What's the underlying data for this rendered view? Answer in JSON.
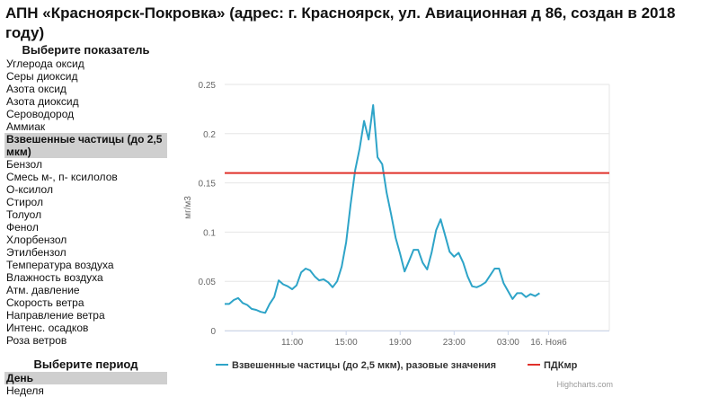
{
  "page": {
    "title": "АПН «Красноярск-Покровка» (адрес: г. Красноярск, ул. Авиационная д 86, создан в 2018 году)"
  },
  "indicators": {
    "heading": "Выберите показатель",
    "selected_index": 6,
    "items": [
      "Углерода оксид",
      "Серы диоксид",
      "Азота оксид",
      "Азота диоксид",
      "Сероводород",
      "Аммиак",
      "Взвешенные частицы (до 2,5 мкм)",
      "Бензол",
      "Смесь м-, п- ксилолов",
      "О-ксилол",
      "Стирол",
      "Толуол",
      "Фенол",
      "Хлорбензол",
      "Этилбензол",
      "Температура воздуха",
      "Влажность воздуха",
      "Атм. давление",
      "Скорость ветра",
      "Направление ветра",
      "Интенс. осадков",
      "Роза ветров"
    ]
  },
  "period": {
    "heading": "Выберите период",
    "selected_index": 0,
    "items": [
      "День",
      "Неделя"
    ]
  },
  "chart_data": {
    "type": "line",
    "title": "",
    "ylabel": "мг/м3",
    "xlabel": "",
    "ylim": [
      0,
      0.25
    ],
    "yticks": [
      0,
      0.05,
      0.1,
      0.15,
      0.2,
      0.25
    ],
    "ytick_labels": [
      "0",
      "0.05",
      "0.1",
      "0.15",
      "0.2",
      "0.25"
    ],
    "xlim": [
      0,
      28.5
    ],
    "xticks": [
      {
        "x": 5,
        "label": "11:00"
      },
      {
        "x": 9,
        "label": "15:00"
      },
      {
        "x": 13,
        "label": "19:00"
      },
      {
        "x": 17,
        "label": "23:00"
      },
      {
        "x": 21,
        "label": "03:00"
      },
      {
        "x": 24,
        "label": "16. Ноя6"
      }
    ],
    "series": [
      {
        "name": "Взвешенные частицы (до 2,5 мкм), разовые значения",
        "color": "#2ea4c8",
        "points": [
          [
            0.0,
            0.027
          ],
          [
            0.33,
            0.027
          ],
          [
            0.67,
            0.031
          ],
          [
            1.0,
            0.033
          ],
          [
            1.33,
            0.028
          ],
          [
            1.67,
            0.026
          ],
          [
            2.0,
            0.022
          ],
          [
            2.33,
            0.021
          ],
          [
            2.67,
            0.019
          ],
          [
            3.0,
            0.018
          ],
          [
            3.33,
            0.027
          ],
          [
            3.67,
            0.034
          ],
          [
            4.0,
            0.051
          ],
          [
            4.33,
            0.047
          ],
          [
            4.67,
            0.045
          ],
          [
            5.0,
            0.042
          ],
          [
            5.33,
            0.046
          ],
          [
            5.67,
            0.059
          ],
          [
            6.0,
            0.063
          ],
          [
            6.33,
            0.061
          ],
          [
            6.67,
            0.055
          ],
          [
            7.0,
            0.051
          ],
          [
            7.33,
            0.052
          ],
          [
            7.67,
            0.049
          ],
          [
            8.0,
            0.044
          ],
          [
            8.33,
            0.05
          ],
          [
            8.67,
            0.065
          ],
          [
            9.0,
            0.09
          ],
          [
            9.33,
            0.128
          ],
          [
            9.67,
            0.163
          ],
          [
            10.0,
            0.185
          ],
          [
            10.33,
            0.213
          ],
          [
            10.67,
            0.194
          ],
          [
            11.0,
            0.229
          ],
          [
            11.33,
            0.176
          ],
          [
            11.67,
            0.169
          ],
          [
            12.0,
            0.14
          ],
          [
            12.33,
            0.118
          ],
          [
            12.67,
            0.094
          ],
          [
            13.0,
            0.078
          ],
          [
            13.33,
            0.06
          ],
          [
            13.67,
            0.071
          ],
          [
            14.0,
            0.082
          ],
          [
            14.33,
            0.082
          ],
          [
            14.67,
            0.069
          ],
          [
            15.0,
            0.062
          ],
          [
            15.33,
            0.079
          ],
          [
            15.67,
            0.102
          ],
          [
            16.0,
            0.113
          ],
          [
            16.33,
            0.097
          ],
          [
            16.67,
            0.08
          ],
          [
            17.0,
            0.075
          ],
          [
            17.33,
            0.079
          ],
          [
            17.67,
            0.069
          ],
          [
            18.0,
            0.055
          ],
          [
            18.33,
            0.045
          ],
          [
            18.67,
            0.044
          ],
          [
            19.0,
            0.046
          ],
          [
            19.33,
            0.049
          ],
          [
            19.67,
            0.056
          ],
          [
            20.0,
            0.063
          ],
          [
            20.33,
            0.063
          ],
          [
            20.67,
            0.048
          ],
          [
            21.0,
            0.04
          ],
          [
            21.33,
            0.032
          ],
          [
            21.67,
            0.038
          ],
          [
            22.0,
            0.038
          ],
          [
            22.33,
            0.034
          ],
          [
            22.67,
            0.037
          ],
          [
            23.0,
            0.035
          ],
          [
            23.33,
            0.038
          ]
        ]
      },
      {
        "name": "ПДКмр",
        "color": "#e0302a",
        "constant": 0.16
      }
    ],
    "credits": "Highcharts.com",
    "grid": true,
    "legend_position": "bottom"
  }
}
